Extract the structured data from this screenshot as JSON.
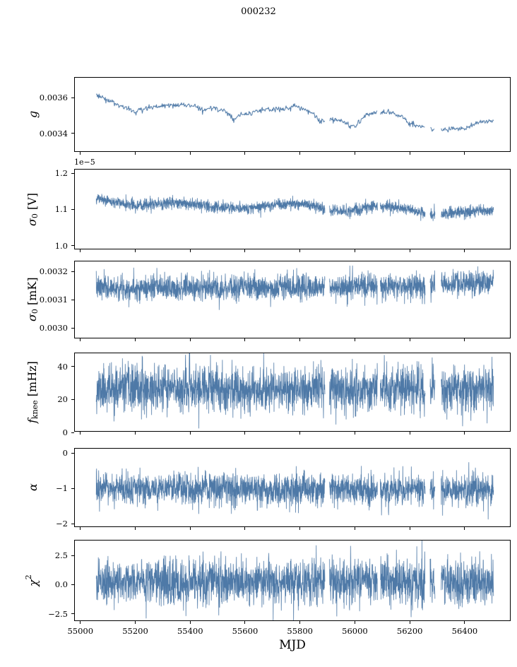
{
  "title": "000232",
  "chart_data": {
    "type": "line",
    "line_color": "#4e79a7",
    "xlabel": "MJD",
    "xlim": [
      54980,
      56570
    ],
    "xticks": [
      55000,
      55200,
      55400,
      55600,
      55800,
      56000,
      56200,
      56400
    ],
    "xtick_labels": [
      "55000",
      "55200",
      "55400",
      "55600",
      "55800",
      "56000",
      "56200",
      "56400"
    ],
    "x_start": 55058,
    "x_end": 56510,
    "gaps": [
      [
        55894,
        55910
      ],
      [
        56086,
        56096
      ],
      [
        56260,
        56278
      ],
      [
        56296,
        56318
      ]
    ],
    "panels": [
      {
        "name": "g",
        "label": {
          "sym": "g",
          "sub": "",
          "sup": "",
          "unit": ""
        },
        "ylim": [
          0.003294,
          0.00371
        ],
        "yticks": [
          0.0034,
          0.0036
        ],
        "ytick_labels": [
          "0.0034",
          "0.0036"
        ],
        "offset_text": "",
        "n_points": 700,
        "seed": 3,
        "noise_sigma": 8e-06,
        "line_width": 1.0,
        "trend_x": [
          55058,
          55080,
          55110,
          55150,
          55200,
          55250,
          55300,
          55360,
          55420,
          55450,
          55470,
          55520,
          55545,
          55560,
          55585,
          55620,
          55680,
          55730,
          55760,
          55790,
          55820,
          55850,
          55875,
          55900,
          55950,
          55985,
          56010,
          56040,
          56080,
          56130,
          56170,
          56200,
          56230,
          56270,
          56310,
          56350,
          56400,
          56430,
          56460,
          56510
        ],
        "trend_y": [
          0.00361,
          0.0036,
          0.00358,
          0.00355,
          0.00352,
          0.00354,
          0.00355,
          0.00356,
          0.00355,
          0.00352,
          0.00354,
          0.00353,
          0.0035,
          0.00347,
          0.0035,
          0.00351,
          0.00353,
          0.00353,
          0.00354,
          0.00355,
          0.00353,
          0.00351,
          0.00346,
          0.00347,
          0.00347,
          0.00344,
          0.00344,
          0.0035,
          0.00351,
          0.00351,
          0.0035,
          0.00345,
          0.00344,
          0.00343,
          0.00341,
          0.00342,
          0.00342,
          0.00344,
          0.00346,
          0.00347
        ]
      },
      {
        "name": "sigma0-v",
        "label": {
          "sym": "σ",
          "sub": "0",
          "sup": "",
          "unit": "[V]"
        },
        "ylim": [
          0.988,
          1.21
        ],
        "yticks": [
          1.0,
          1.1,
          1.2
        ],
        "ytick_labels": [
          "1.0",
          "1.1",
          "1.2"
        ],
        "offset_text": "1e−5",
        "n_points": 2300,
        "seed": 5,
        "noise_sigma": 0.008,
        "line_width": 0.8,
        "trend_x": [
          55058,
          55120,
          55200,
          55280,
          55360,
          55440,
          55520,
          55600,
          55660,
          55720,
          55800,
          55860,
          55920,
          55980,
          56040,
          56100,
          56160,
          56220,
          56280,
          56340,
          56400,
          56460,
          56510
        ],
        "trend_y": [
          1.128,
          1.12,
          1.11,
          1.114,
          1.116,
          1.11,
          1.104,
          1.1,
          1.106,
          1.112,
          1.114,
          1.108,
          1.094,
          1.092,
          1.103,
          1.108,
          1.103,
          1.094,
          1.083,
          1.086,
          1.09,
          1.094,
          1.095
        ]
      },
      {
        "name": "sigma0-mk",
        "label": {
          "sym": "σ",
          "sub": "0",
          "sup": "",
          "unit": "[mK]"
        },
        "ylim": [
          0.00296,
          0.003235
        ],
        "yticks": [
          0.003,
          0.0031,
          0.0032
        ],
        "ytick_labels": [
          "0.0030",
          "0.0031",
          "0.0032"
        ],
        "offset_text": "",
        "n_points": 2300,
        "seed": 7,
        "noise_sigma": 2.2e-05,
        "line_width": 0.8,
        "trend_x": [
          55058,
          55600,
          56000,
          56250,
          56510
        ],
        "trend_y": [
          0.00314,
          0.00314,
          0.003145,
          0.00315,
          0.00316
        ]
      },
      {
        "name": "fknee",
        "label": {
          "sym": "f",
          "sub": "knee",
          "sup": "",
          "unit": "[mHz]"
        },
        "ylim": [
          0,
          48
        ],
        "yticks": [
          0,
          20,
          40
        ],
        "ytick_labels": [
          "0",
          "20",
          "40"
        ],
        "offset_text": "",
        "n_points": 2300,
        "seed": 11,
        "noise_sigma": 7,
        "line_width": 0.8,
        "trend_x": [
          55058,
          56510
        ],
        "trend_y": [
          26,
          26
        ]
      },
      {
        "name": "alpha",
        "label": {
          "sym": "α",
          "sub": "",
          "sup": "",
          "unit": ""
        },
        "ylim": [
          -2.12,
          0.12
        ],
        "yticks": [
          -2,
          -1,
          0
        ],
        "ytick_labels": [
          "−2",
          "−1",
          "0"
        ],
        "offset_text": "",
        "n_points": 2300,
        "seed": 13,
        "noise_sigma": 0.23,
        "line_width": 0.8,
        "trend_x": [
          55058,
          56510
        ],
        "trend_y": [
          -1.05,
          -1.05
        ]
      },
      {
        "name": "chi2",
        "label": {
          "sym": "χ",
          "sub": "",
          "sup": "2",
          "unit": ""
        },
        "ylim": [
          -3.2,
          3.8
        ],
        "yticks": [
          -2.5,
          0,
          2.5
        ],
        "ytick_labels": [
          "−2.5",
          "0.0",
          "2.5"
        ],
        "offset_text": "",
        "n_points": 2300,
        "seed": 17,
        "noise_sigma": 1.0,
        "line_width": 0.8,
        "trend_x": [
          55058,
          56510
        ],
        "trend_y": [
          0.15,
          0.15
        ]
      }
    ]
  }
}
